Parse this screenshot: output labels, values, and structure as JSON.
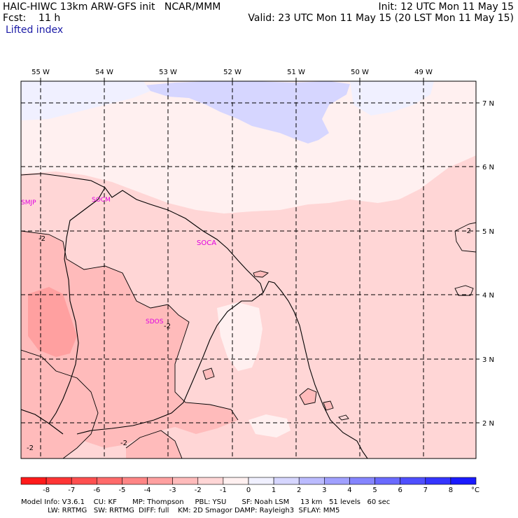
{
  "header": {
    "left_line1": "HAIC-HIWC 13km ARW-GFS init   NCAR/MMM",
    "left_line2": "Fcst:    11 h",
    "left_line3": "Lifted index",
    "right_line1": "Init: 12 UTC Mon 11 May 15",
    "right_line2": "Valid: 23 UTC Mon 11 May 15 (20 LST Mon 11 May 15)"
  },
  "map": {
    "lon_labels": [
      "55 W",
      "54 W",
      "53 W",
      "52 W",
      "51 W",
      "50 W",
      "49 W"
    ],
    "lat_labels": [
      "7 N",
      "6 N",
      "5 N",
      "4 N",
      "3 N",
      "2 N"
    ],
    "stations": [
      "SMJP",
      "SOCM",
      "SOCA",
      "SDOS"
    ],
    "contour_labels": [
      "-2",
      "-2",
      "-2",
      "-2",
      "-2"
    ]
  },
  "colorbar": {
    "ticks": [
      "-8",
      "-7",
      "-6",
      "-5",
      "-4",
      "-3",
      "-2",
      "-1",
      "0",
      "1",
      "2",
      "3",
      "4",
      "5",
      "6",
      "7",
      "8"
    ],
    "unit": "°C",
    "colors": [
      "#ff1a1a",
      "#ff3535",
      "#ff4f4f",
      "#ff6a6a",
      "#ff8585",
      "#ffa0a0",
      "#ffbbbb",
      "#ffd6d6",
      "#fff0f0",
      "#f0f0ff",
      "#d6d6ff",
      "#bbbbff",
      "#a0a0ff",
      "#8585ff",
      "#6a6aff",
      "#4f4fff",
      "#3535ff",
      "#1a1aff"
    ]
  },
  "footer": {
    "line1": "Model Info: V3.6.1    CU: KF       MP: Thompson     PBL: YSU       SF: Noah LSM     13 km   51 levels   60 sec",
    "line2": "            LW: RRTMG   SW: RRTMG  DIFF: full    KM: 2D Smagor DAMP: Rayleigh3  SFLAY: MM5"
  }
}
